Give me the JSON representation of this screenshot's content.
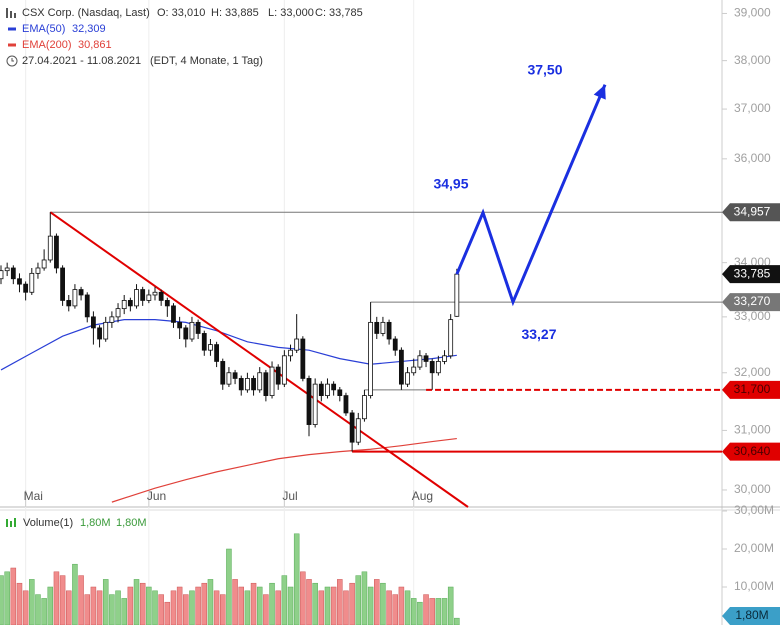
{
  "chart_data": {
    "type": "candlestick",
    "title": "CSX Corp. (Nasdaq, Last)",
    "ohlc_labels": [
      "O: 33,010",
      "H: 33,885",
      "L: 33,000",
      "C: 33,785"
    ],
    "period": "27.04.2021 - 11.08.2021",
    "period_note": "(EDT, 4 Monate, 1 Tag)",
    "categories": [
      null,
      null,
      null,
      null,
      "Mai",
      null,
      null,
      null,
      null,
      null,
      null,
      null,
      null,
      null,
      null,
      null,
      null,
      null,
      null,
      null,
      null,
      null,
      null,
      null,
      "Jun",
      null,
      null,
      null,
      null,
      null,
      null,
      null,
      null,
      null,
      null,
      null,
      null,
      null,
      null,
      null,
      null,
      null,
      null,
      null,
      null,
      null,
      "Jul",
      null,
      null,
      null,
      null,
      null,
      null,
      null,
      null,
      null,
      null,
      null,
      null,
      null,
      null,
      null,
      null,
      null,
      null,
      null,
      null,
      "Aug",
      null,
      null,
      null,
      null,
      null,
      null,
      null
    ],
    "open": [
      33700,
      33850,
      33900,
      33700,
      33600,
      33450,
      33800,
      33900,
      34050,
      34500,
      33900,
      33300,
      33200,
      33500,
      33400,
      33000,
      32800,
      32600,
      32900,
      33000,
      33150,
      33300,
      33200,
      33500,
      33300,
      33400,
      33450,
      33300,
      33200,
      32900,
      32800,
      32600,
      32900,
      32700,
      32400,
      32500,
      32200,
      31800,
      32000,
      31900,
      31700,
      31900,
      31700,
      32000,
      31600,
      32100,
      31800,
      32300,
      32400,
      32600,
      31900,
      31100,
      31800,
      31600,
      31800,
      31700,
      31600,
      31300,
      30800,
      31200,
      31600,
      32900,
      32700,
      32900,
      32600,
      32400,
      31800,
      32000,
      32100,
      32300,
      32200,
      32000,
      32200,
      32300,
      33010
    ],
    "high": [
      33950,
      34000,
      33950,
      33800,
      33650,
      33900,
      34000,
      34250,
      34957,
      34550,
      33950,
      33400,
      33600,
      33550,
      33450,
      33100,
      32850,
      33000,
      33100,
      33250,
      33400,
      33350,
      33600,
      33550,
      33500,
      33550,
      33500,
      33350,
      33250,
      33000,
      32850,
      33000,
      32950,
      32750,
      32600,
      32550,
      32250,
      32100,
      32050,
      31950,
      32000,
      31950,
      32100,
      32050,
      32200,
      32150,
      32400,
      32500,
      33050,
      32650,
      31950,
      31900,
      31850,
      31900,
      31850,
      31750,
      31650,
      31350,
      31300,
      31700,
      33270,
      33000,
      33000,
      32950,
      32650,
      32450,
      32100,
      32250,
      32400,
      32350,
      32250,
      32300,
      32400,
      33050,
      33885
    ],
    "low": [
      33600,
      33750,
      33600,
      33450,
      33300,
      33400,
      33700,
      33850,
      34000,
      33800,
      33200,
      33100,
      33150,
      33300,
      32900,
      32500,
      32450,
      32550,
      32800,
      32900,
      33050,
      33100,
      33150,
      33200,
      33250,
      33300,
      33200,
      33000,
      32800,
      32600,
      32450,
      32550,
      32600,
      32300,
      32300,
      32100,
      31700,
      31750,
      31800,
      31600,
      31650,
      31600,
      31650,
      31500,
      31550,
      31700,
      31750,
      32200,
      32350,
      31850,
      30900,
      31050,
      31500,
      31550,
      31600,
      31500,
      31250,
      30640,
      30750,
      31150,
      31550,
      32600,
      32650,
      32500,
      32300,
      31700,
      31750,
      31950,
      32050,
      32100,
      31700,
      31950,
      32150,
      32250,
      33000
    ],
    "close": [
      33850,
      33900,
      33700,
      33600,
      33450,
      33800,
      33900,
      34050,
      34500,
      33900,
      33300,
      33200,
      33500,
      33400,
      33000,
      32800,
      32600,
      32900,
      33000,
      33150,
      33300,
      33200,
      33500,
      33300,
      33400,
      33450,
      33300,
      33200,
      32900,
      32800,
      32600,
      32900,
      32700,
      32400,
      32500,
      32200,
      31800,
      32000,
      31900,
      31700,
      31900,
      31700,
      32000,
      31600,
      32100,
      31800,
      32300,
      32400,
      32600,
      31900,
      31100,
      31800,
      31600,
      31800,
      31700,
      31600,
      31300,
      30800,
      31200,
      31600,
      32900,
      32700,
      32900,
      32600,
      32400,
      31800,
      32000,
      32100,
      32300,
      32200,
      32000,
      32200,
      32300,
      32950,
      33785
    ],
    "close_label": "33,785",
    "up_color": "#ffffff",
    "down_color": "#111111",
    "candle_stroke": "#111111",
    "log": true,
    "ylim": [
      29720,
      39290
    ],
    "yticks": [
      {
        "value": 30000,
        "label": "30,000"
      },
      {
        "value": 31000,
        "label": "31,000"
      },
      {
        "value": 32000,
        "label": "32,000"
      },
      {
        "value": 33000,
        "label": "33,000"
      },
      {
        "value": 34000,
        "label": "34,000"
      },
      {
        "value": 36000,
        "label": "36,000"
      },
      {
        "value": 37000,
        "label": "37,000"
      },
      {
        "value": 38000,
        "label": "38,000"
      },
      {
        "value": 39000,
        "label": "39,000"
      }
    ],
    "series": [
      {
        "name": "EMA(50)",
        "last_label": "32,309",
        "color": "#2a3fd6",
        "x": [
          0,
          5,
          10,
          15,
          20,
          25,
          30,
          35,
          40,
          45,
          50,
          55,
          60,
          65,
          70,
          74
        ],
        "values": [
          32050,
          32350,
          32650,
          32850,
          32950,
          32950,
          32900,
          32750,
          32550,
          32450,
          32400,
          32250,
          32150,
          32200,
          32250,
          32309
        ]
      },
      {
        "name": "EMA(200)",
        "last_label": "30,861",
        "color": "#e0413a",
        "x": [
          18,
          25,
          30,
          35,
          40,
          45,
          50,
          55,
          60,
          65,
          70,
          74
        ],
        "values": [
          29800,
          30030,
          30170,
          30300,
          30410,
          30520,
          30590,
          30640,
          30680,
          30740,
          30810,
          30861
        ]
      }
    ],
    "levels": [
      {
        "value": 34957,
        "label": "34,957",
        "color": "#777777",
        "tag_color": "#555555"
      },
      {
        "value": 33270,
        "label": "33,270",
        "color": "#777777",
        "tag_color": "#777777"
      },
      {
        "value": 31700,
        "label": "31,700",
        "color": "#e00000",
        "tag_color": "#e00000",
        "dashed": true
      },
      {
        "value": 30640,
        "label": "30,640",
        "color": "#e00000",
        "tag_color": "#e00000"
      }
    ],
    "trendline_color": "#e00000",
    "targets": [
      {
        "value": 34950,
        "label": "34,95"
      },
      {
        "value": 33270,
        "label": "33,27"
      },
      {
        "value": 37500,
        "label": "37,50"
      }
    ],
    "target_color": "#1a2fe0",
    "volume": {
      "name": "Volume(1)",
      "labels": [
        "1,80M",
        "1,80M"
      ],
      "last_label": "1,80M",
      "up_color": "#8fd08a",
      "down_color": "#f08c8c",
      "tag_color": "#3b9fc8",
      "ylim": [
        0,
        30
      ],
      "yticks": [
        {
          "value": 10,
          "label": "10,00M"
        },
        {
          "value": 20,
          "label": "20,00M"
        },
        {
          "value": 30,
          "label": "30,00M"
        }
      ],
      "values": [
        13,
        14,
        15,
        11,
        9,
        12,
        8,
        7,
        10,
        14,
        13,
        9,
        16,
        13,
        8,
        10,
        9,
        12,
        8,
        9,
        7,
        10,
        12,
        11,
        10,
        9,
        8,
        6,
        9,
        10,
        8,
        9,
        10,
        11,
        12,
        9,
        8,
        20,
        12,
        10,
        9,
        11,
        10,
        8,
        11,
        9,
        13,
        10,
        24,
        14,
        12,
        11,
        9,
        10,
        10,
        12,
        9,
        11,
        13,
        14,
        10,
        12,
        11,
        9,
        8,
        10,
        9,
        7,
        6,
        8,
        7,
        7,
        7,
        10,
        1.8
      ]
    }
  }
}
